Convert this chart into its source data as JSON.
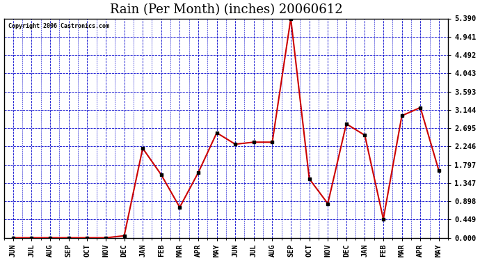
{
  "title": "Rain (Per Month) (inches) 20060612",
  "copyright": "Copyright 2006 Castronics.com",
  "x_labels": [
    "JUN",
    "JUL",
    "AUG",
    "SEP",
    "OCT",
    "NOV",
    "DEC",
    "JAN",
    "FEB",
    "MAR",
    "APR",
    "MAY",
    "JUN",
    "JUL",
    "AUG",
    "SEP",
    "OCT",
    "NOV",
    "DEC",
    "JAN",
    "FEB",
    "MAR",
    "APR",
    "MAY"
  ],
  "y_values": [
    0.0,
    0.0,
    0.0,
    0.0,
    0.0,
    0.0,
    0.05,
    2.2,
    1.55,
    0.75,
    1.6,
    2.58,
    2.3,
    2.35,
    2.35,
    5.39,
    1.45,
    0.84,
    2.8,
    2.52,
    0.46,
    3.0,
    3.2,
    1.65
  ],
  "line_color": "#cc0000",
  "marker_color": "#000000",
  "bg_color": "#ffffff",
  "grid_color": "#0000cc",
  "y_ticks": [
    0.0,
    0.449,
    0.898,
    1.347,
    1.797,
    2.246,
    2.695,
    3.144,
    3.593,
    4.043,
    4.492,
    4.941,
    5.39
  ],
  "y_min": 0.0,
  "y_max": 5.39,
  "title_fontsize": 13,
  "tick_fontsize": 7.5,
  "copyright_fontsize": 6
}
